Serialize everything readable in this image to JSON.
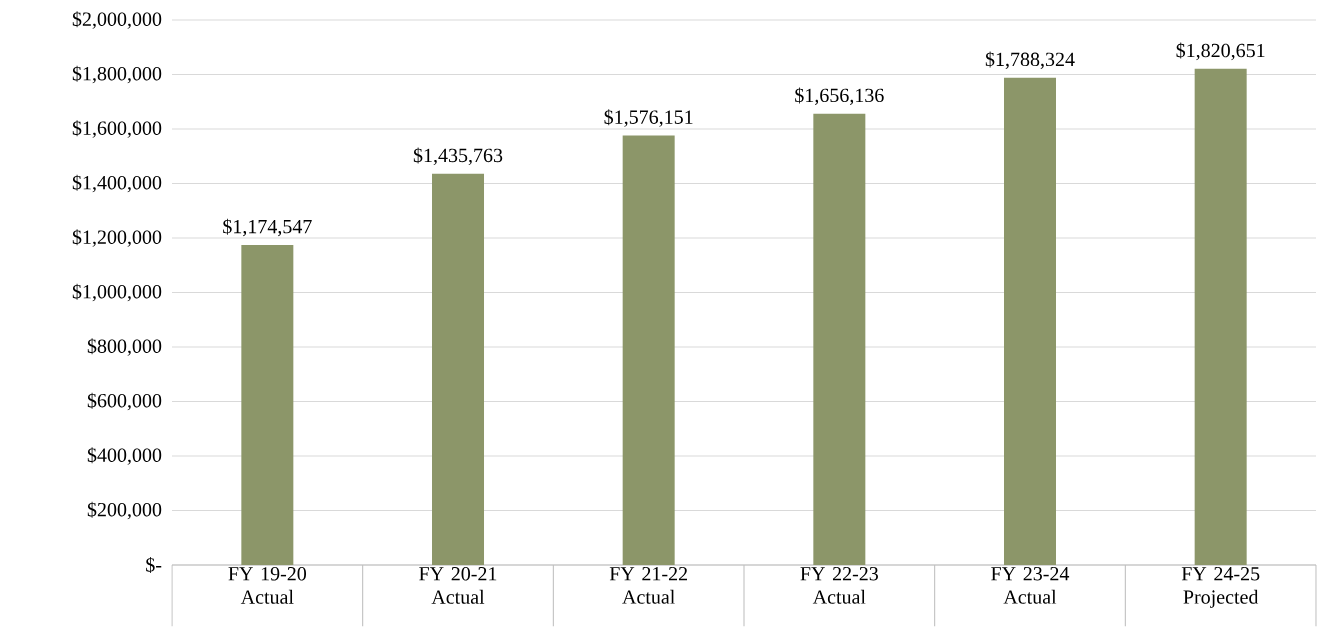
{
  "chart_data": {
    "type": "bar",
    "categories": [
      "FY 19-20 Actual",
      "FY 20-21 Actual",
      "FY 21-22 Actual",
      "FY 22-23 Actual",
      "FY 23-24 Actual",
      "FY 24-25 Projected"
    ],
    "values": [
      1174547,
      1435763,
      1576151,
      1656136,
      1788324,
      1820651
    ],
    "value_labels": [
      "$1,174,547",
      "$1,435,763",
      "$1,576,151",
      "$1,656,136",
      "$1,788,324",
      "$1,820,651"
    ],
    "color": "#8c9669",
    "ylim": [
      0,
      2000000
    ],
    "yticks": [
      {
        "value": 0,
        "label": "$-"
      },
      {
        "value": 200000,
        "label": "$200,000"
      },
      {
        "value": 400000,
        "label": "$400,000"
      },
      {
        "value": 600000,
        "label": "$600,000"
      },
      {
        "value": 800000,
        "label": "$800,000"
      },
      {
        "value": 1000000,
        "label": "$1,000,000"
      },
      {
        "value": 1200000,
        "label": "$1,200,000"
      },
      {
        "value": 1400000,
        "label": "$1,400,000"
      },
      {
        "value": 1600000,
        "label": "$1,600,000"
      },
      {
        "value": 1800000,
        "label": "$1,800,000"
      },
      {
        "value": 2000000,
        "label": "$2,000,000"
      }
    ],
    "grid": "y"
  }
}
